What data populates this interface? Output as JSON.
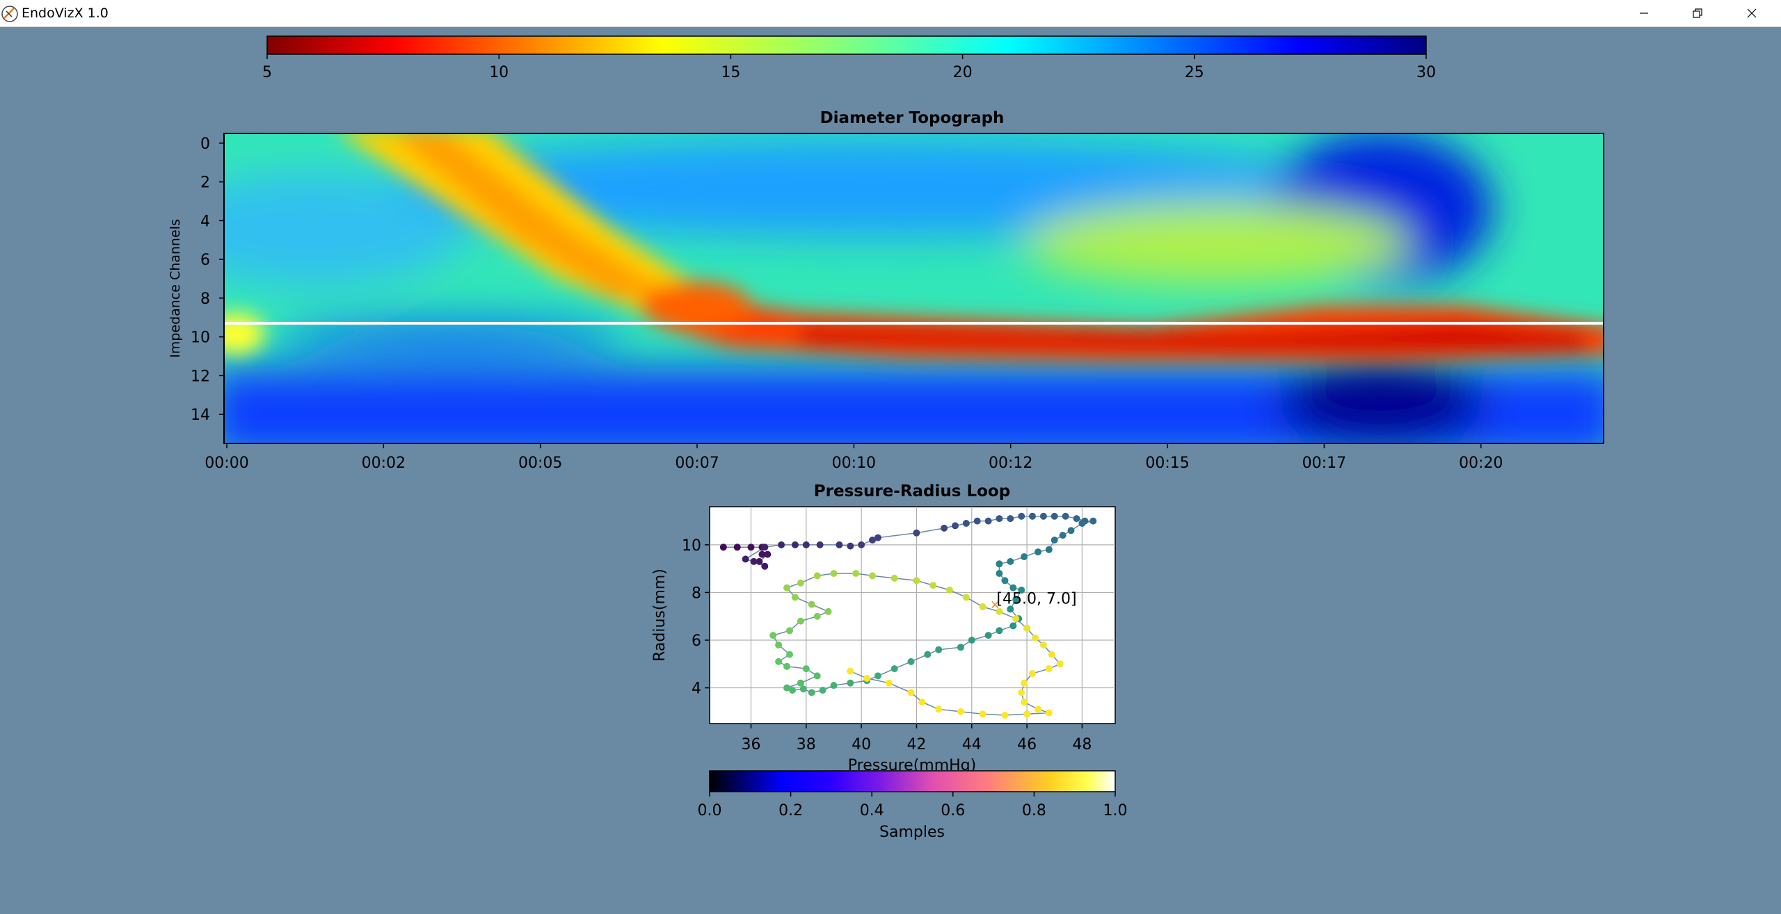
{
  "window": {
    "title": "EndoVizX 1.0",
    "minimize_icon": "minimize-icon",
    "restore_icon": "restore-icon",
    "close_icon": "close-icon"
  },
  "colors": {
    "background": "#6a8aa4",
    "loop_line": "#6a8aa4",
    "marker": "#ff7f0e",
    "cursor_line": "#ffffff"
  },
  "chart_data": [
    {
      "id": "diameter-colorbar",
      "type": "colorbar",
      "colormap": "jet_r",
      "ticks": [
        "5",
        "10",
        "15",
        "20",
        "25",
        "30"
      ],
      "range": [
        5,
        30
      ]
    },
    {
      "id": "diameter-topograph",
      "type": "heatmap",
      "title": "Diameter Topograph",
      "ylabel": "Impedance Channels",
      "xlabel": "",
      "y_ticks": [
        "0",
        "2",
        "4",
        "6",
        "8",
        "10",
        "12",
        "14"
      ],
      "x_ticks": [
        "00:00",
        "00:02",
        "00:05",
        "00:07",
        "00:10",
        "00:12",
        "00:15",
        "00:17",
        "00:20"
      ],
      "ylim": [
        15.5,
        -0.5
      ],
      "x_range_seconds": [
        0,
        21
      ],
      "colormap": "jet_r",
      "cursor_channel": 9.3
    },
    {
      "id": "pressure-radius-loop",
      "type": "scatter",
      "title": "Pressure-Radius Loop",
      "xlabel": "Pressure(mmHg)",
      "ylabel": "Radius(mm)",
      "xlim": [
        34.5,
        49.2
      ],
      "ylim": [
        2.5,
        11.6
      ],
      "x_ticks": [
        "36",
        "38",
        "40",
        "42",
        "44",
        "46",
        "48"
      ],
      "y_ticks": [
        "4",
        "6",
        "8",
        "10"
      ],
      "grid": true,
      "colormap": "viridis",
      "annotation": {
        "text": "[45.0, 7.0]",
        "x": 45.0,
        "y": 7.5
      },
      "points": [
        [
          35,
          9.9,
          0.02
        ],
        [
          35.5,
          9.9,
          0.03
        ],
        [
          36,
          9.9,
          0.04
        ],
        [
          36.4,
          9.9,
          0.05
        ],
        [
          36.4,
          9.6,
          0.06
        ],
        [
          36.6,
          9.6,
          0.06
        ],
        [
          36.3,
          9.3,
          0.07
        ],
        [
          36.5,
          9.1,
          0.08
        ],
        [
          36.1,
          9.3,
          0.08
        ],
        [
          35.8,
          9.4,
          0.09
        ],
        [
          36.5,
          9.9,
          0.1
        ],
        [
          37.1,
          10.0,
          0.12
        ],
        [
          37.6,
          10.0,
          0.13
        ],
        [
          38,
          10.0,
          0.14
        ],
        [
          38.5,
          10.0,
          0.15
        ],
        [
          39.2,
          10.0,
          0.16
        ],
        [
          39.6,
          9.95,
          0.17
        ],
        [
          40,
          10.0,
          0.18
        ],
        [
          40.4,
          10.2,
          0.19
        ],
        [
          40.6,
          10.3,
          0.2
        ],
        [
          42,
          10.5,
          0.21
        ],
        [
          43,
          10.7,
          0.22
        ],
        [
          43.4,
          10.8,
          0.23
        ],
        [
          43.8,
          10.9,
          0.24
        ],
        [
          44.2,
          11.0,
          0.25
        ],
        [
          44.6,
          11.0,
          0.26
        ],
        [
          45,
          11.1,
          0.27
        ],
        [
          45.4,
          11.1,
          0.28
        ],
        [
          45.8,
          11.2,
          0.29
        ],
        [
          46.2,
          11.2,
          0.3
        ],
        [
          46.6,
          11.2,
          0.31
        ],
        [
          47,
          11.2,
          0.31
        ],
        [
          47.4,
          11.2,
          0.32
        ],
        [
          47.8,
          11.1,
          0.33
        ],
        [
          48.1,
          11.0,
          0.34
        ],
        [
          48.4,
          11.0,
          0.35
        ],
        [
          48.0,
          10.9,
          0.36
        ],
        [
          47.6,
          10.6,
          0.37
        ],
        [
          47.3,
          10.4,
          0.38
        ],
        [
          47.0,
          10.2,
          0.39
        ],
        [
          46.8,
          9.8,
          0.4
        ],
        [
          46.4,
          9.7,
          0.41
        ],
        [
          45.9,
          9.5,
          0.42
        ],
        [
          45.4,
          9.3,
          0.43
        ],
        [
          45.0,
          9.2,
          0.44
        ],
        [
          45.0,
          8.8,
          0.45
        ],
        [
          45.2,
          8.5,
          0.46
        ],
        [
          45.5,
          8.2,
          0.47
        ],
        [
          45.8,
          8.1,
          0.48
        ],
        [
          45.6,
          7.7,
          0.49
        ],
        [
          45.4,
          7.3,
          0.5
        ],
        [
          45.7,
          6.9,
          0.51
        ],
        [
          45.5,
          6.6,
          0.52
        ],
        [
          45.0,
          6.4,
          0.53
        ],
        [
          44.6,
          6.2,
          0.54
        ],
        [
          44.0,
          6.0,
          0.55
        ],
        [
          43.6,
          5.7,
          0.56
        ],
        [
          42.8,
          5.6,
          0.57
        ],
        [
          42.4,
          5.4,
          0.58
        ],
        [
          41.8,
          5.1,
          0.59
        ],
        [
          41.2,
          4.8,
          0.6
        ],
        [
          40.6,
          4.5,
          0.61
        ],
        [
          40.2,
          4.3,
          0.62
        ],
        [
          39.6,
          4.2,
          0.63
        ],
        [
          39.0,
          4.1,
          0.64
        ],
        [
          38.6,
          3.9,
          0.65
        ],
        [
          38.2,
          3.8,
          0.66
        ],
        [
          37.9,
          3.95,
          0.67
        ],
        [
          37.5,
          3.9,
          0.68
        ],
        [
          37.3,
          4.0,
          0.69
        ],
        [
          37.8,
          4.2,
          0.7
        ],
        [
          38.4,
          4.5,
          0.71
        ],
        [
          38.0,
          4.8,
          0.72
        ],
        [
          37.3,
          4.9,
          0.73
        ],
        [
          37.0,
          5.1,
          0.74
        ],
        [
          37.4,
          5.4,
          0.75
        ],
        [
          37.0,
          5.8,
          0.76
        ],
        [
          36.8,
          6.2,
          0.77
        ],
        [
          37.4,
          6.4,
          0.78
        ],
        [
          37.8,
          6.8,
          0.79
        ],
        [
          38.4,
          7.0,
          0.8
        ],
        [
          38.8,
          7.2,
          0.81
        ],
        [
          38.2,
          7.5,
          0.82
        ],
        [
          37.6,
          7.8,
          0.83
        ],
        [
          37.3,
          8.2,
          0.84
        ],
        [
          37.8,
          8.4,
          0.85
        ],
        [
          38.4,
          8.7,
          0.86
        ],
        [
          39.0,
          8.8,
          0.86
        ],
        [
          39.8,
          8.8,
          0.87
        ],
        [
          40.4,
          8.7,
          0.88
        ],
        [
          41.2,
          8.6,
          0.89
        ],
        [
          42.0,
          8.5,
          0.9
        ],
        [
          42.6,
          8.3,
          0.91
        ],
        [
          43.2,
          8.1,
          0.92
        ],
        [
          43.8,
          7.8,
          0.93
        ],
        [
          44.4,
          7.4,
          0.94
        ],
        [
          45.0,
          7.2,
          0.95
        ],
        [
          45.6,
          6.9,
          0.96
        ],
        [
          46.0,
          6.5,
          0.97
        ],
        [
          46.3,
          6.1,
          0.98
        ],
        [
          46.6,
          5.8,
          0.985
        ],
        [
          46.9,
          5.4,
          0.99
        ],
        [
          47.2,
          5.0,
          0.99
        ],
        [
          46.8,
          4.8,
          0.995
        ],
        [
          46.2,
          4.6,
          0.995
        ],
        [
          45.9,
          4.2,
          0.996
        ],
        [
          45.8,
          3.8,
          0.997
        ],
        [
          45.9,
          3.4,
          0.998
        ],
        [
          46.4,
          3.1,
          0.998
        ],
        [
          46.8,
          2.95,
          0.999
        ],
        [
          46.0,
          2.9,
          0.999
        ],
        [
          45.2,
          2.85,
          1.0
        ],
        [
          44.4,
          2.9,
          1.0
        ],
        [
          43.6,
          3.0,
          1.0
        ],
        [
          42.8,
          3.1,
          1.0
        ],
        [
          42.2,
          3.4,
          1.0
        ],
        [
          41.8,
          3.8,
          1.0
        ],
        [
          41.0,
          4.2,
          1.0
        ],
        [
          40.2,
          4.4,
          1.0
        ],
        [
          39.6,
          4.7,
          1.0
        ]
      ]
    },
    {
      "id": "samples-colorbar",
      "type": "colorbar",
      "colormap": "gnuplot2",
      "label": "Samples",
      "ticks": [
        "0.0",
        "0.2",
        "0.4",
        "0.6",
        "0.8",
        "1.0"
      ],
      "range": [
        0,
        1
      ]
    }
  ]
}
